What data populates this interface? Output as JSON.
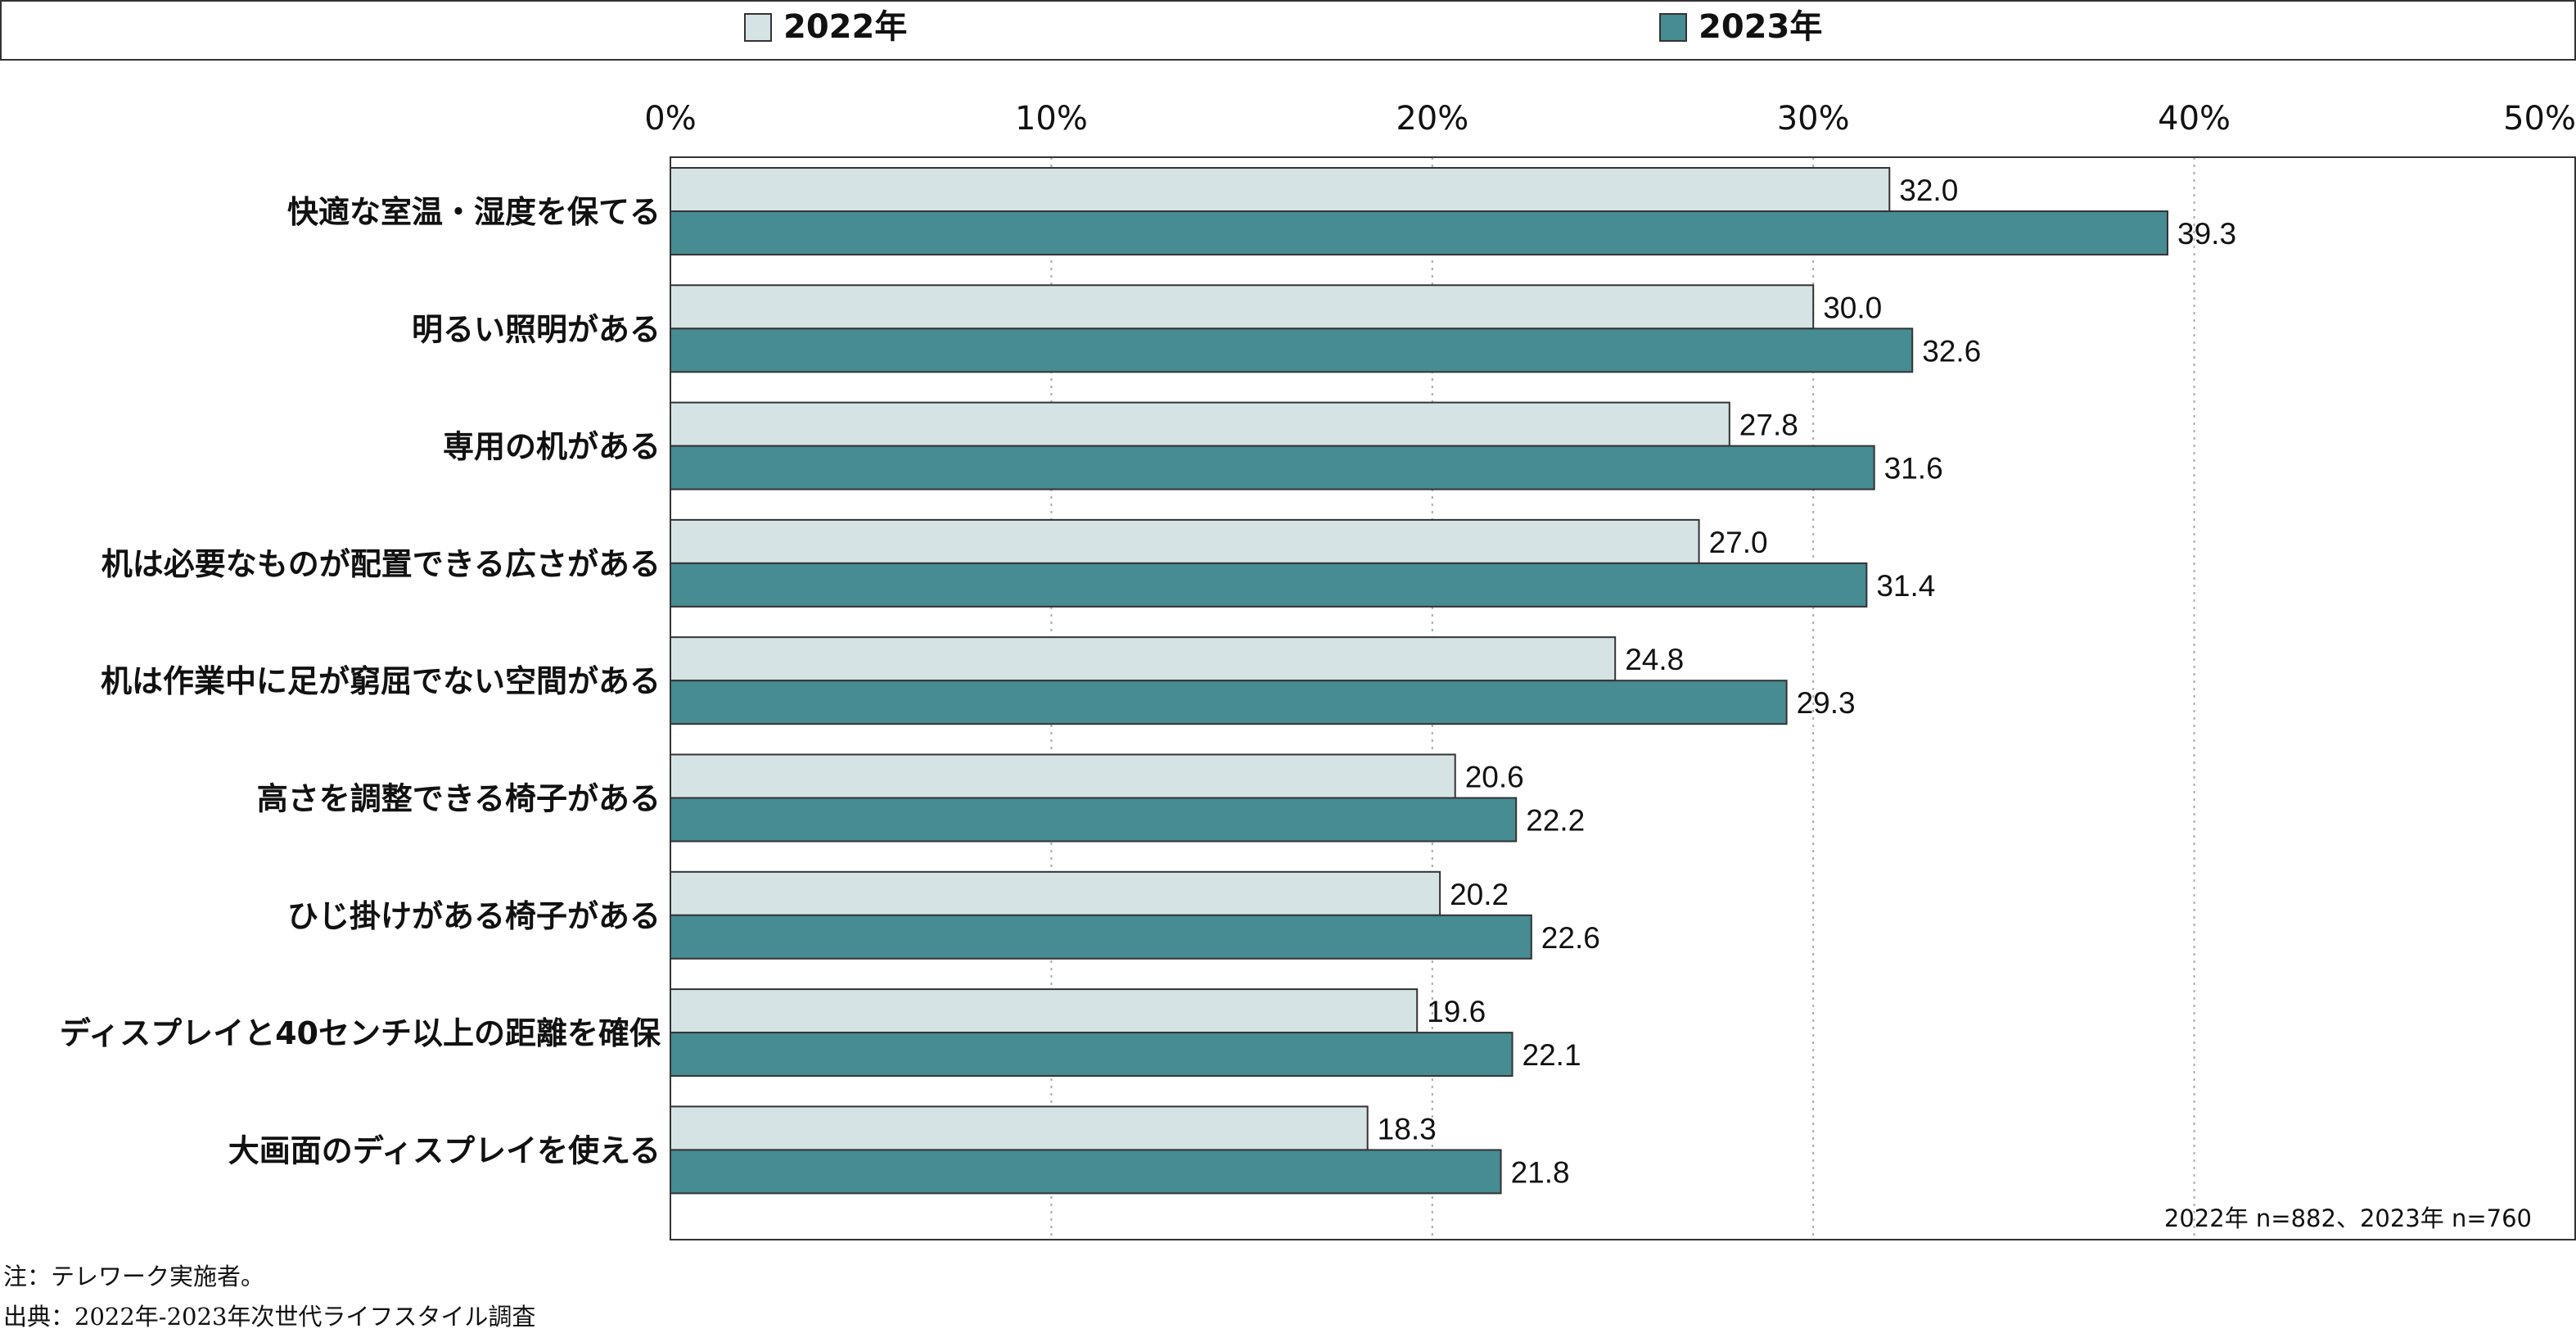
{
  "chart_data": {
    "type": "bar",
    "orientation": "horizontal",
    "categories": [
      "快適な室温・湿度を保てる",
      "明るい照明がある",
      "専用の机がある",
      "机は必要なものが配置できる広さがある",
      "机は作業中に足が窮屈でない空間がある",
      "高さを調整できる椅子がある",
      "ひじ掛けがある椅子がある",
      "ディスプレイと40センチ以上の距離を確保",
      "大画面のディスプレイを使える"
    ],
    "series": [
      {
        "name": "2022年",
        "values": [
          32.0,
          30.0,
          27.8,
          27.0,
          24.8,
          20.6,
          20.2,
          19.6,
          18.3
        ],
        "labels": [
          "32.0",
          "30.0",
          "27.8",
          "27.0",
          "24.8",
          "20.6",
          "20.2",
          "19.6",
          "18.3"
        ]
      },
      {
        "name": "2023年",
        "values": [
          39.3,
          32.6,
          31.6,
          31.4,
          29.3,
          22.2,
          22.6,
          22.1,
          21.8
        ],
        "labels": [
          "39.3",
          "32.6",
          "31.6",
          "31.4",
          "29.3",
          "22.2",
          "22.6",
          "22.1",
          "21.8"
        ]
      }
    ],
    "xlim": [
      0,
      50
    ],
    "x_ticks": [
      0,
      10,
      20,
      30,
      40,
      50
    ],
    "x_tick_labels": [
      "0%",
      "10%",
      "20%",
      "30%",
      "40%",
      "50%"
    ],
    "grid": "vertical dotted",
    "legend_position": "top",
    "sample_note": "2022年 n=882、2023年 n=760",
    "colors": {
      "2022年": "#d5e3e4",
      "2023年": "#478b93",
      "edge": "#333333",
      "grid": "#aaaaaa"
    }
  },
  "footnotes": {
    "note": "注：テレワーク実施者。",
    "source": "出典：2022年-2023年次世代ライフスタイル調査"
  }
}
